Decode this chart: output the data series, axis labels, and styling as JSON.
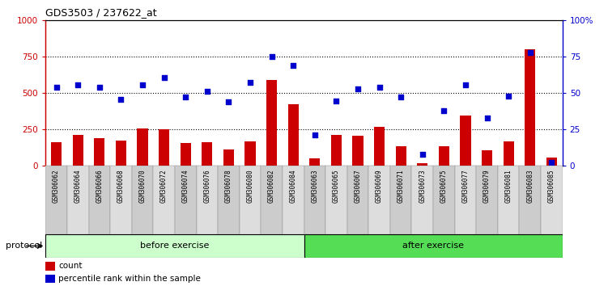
{
  "title": "GDS3503 / 237622_at",
  "samples": [
    "GSM306062",
    "GSM306064",
    "GSM306066",
    "GSM306068",
    "GSM306070",
    "GSM306072",
    "GSM306074",
    "GSM306076",
    "GSM306078",
    "GSM306080",
    "GSM306082",
    "GSM306084",
    "GSM306063",
    "GSM306065",
    "GSM306067",
    "GSM306069",
    "GSM306071",
    "GSM306073",
    "GSM306075",
    "GSM306077",
    "GSM306079",
    "GSM306081",
    "GSM306083",
    "GSM306085"
  ],
  "counts": [
    165,
    210,
    190,
    175,
    255,
    250,
    155,
    165,
    110,
    170,
    590,
    420,
    50,
    210,
    205,
    265,
    135,
    20,
    135,
    345,
    105,
    170,
    800,
    55
  ],
  "percentile_ranks": [
    54,
    55.5,
    54,
    45.5,
    55.5,
    60.5,
    47,
    51,
    44,
    57,
    75,
    69,
    21.5,
    44.5,
    53,
    54,
    47.5,
    8,
    38,
    55.5,
    33,
    48,
    77.5,
    2.5
  ],
  "before_exercise_count": 12,
  "ylim_left": [
    0,
    1000
  ],
  "ylim_right": [
    0,
    100
  ],
  "yticks_left": [
    0,
    250,
    500,
    750,
    1000
  ],
  "ytick_labels_left": [
    "0",
    "250",
    "500",
    "750",
    "1000"
  ],
  "yticks_right": [
    0,
    25,
    50,
    75,
    100
  ],
  "ytick_labels_right": [
    "0",
    "25",
    "50",
    "75",
    "100%"
  ],
  "bar_color": "#cc0000",
  "dot_color": "#0000cc",
  "before_color_light": "#ccffcc",
  "after_color": "#55dd55",
  "protocol_label": "protocol",
  "before_label": "before exercise",
  "after_label": "after exercise",
  "legend_count_label": "count",
  "legend_pct_label": "percentile rank within the sample",
  "axis_left_color": "#cc0000",
  "axis_right_color": "#0000cc",
  "bar_width": 0.5,
  "label_bg_even": "#cccccc",
  "label_bg_odd": "#dddddd"
}
